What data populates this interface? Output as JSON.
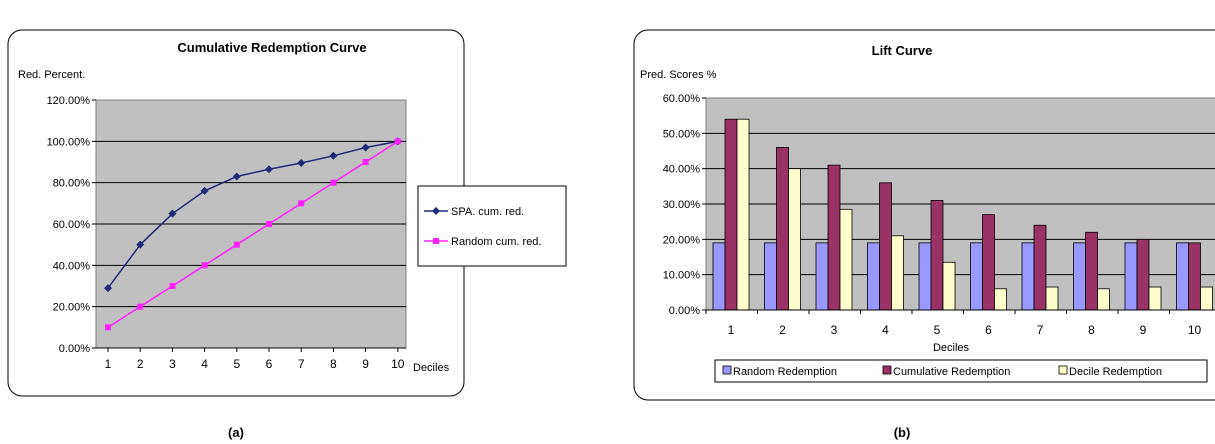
{
  "captions": {
    "a": "(a)",
    "b": "(b)"
  },
  "chart_data": [
    {
      "type": "line",
      "title": "Cumulative Redemption Curve",
      "ylabel": "Red. Percent.",
      "xlabel": "Deciles",
      "x": [
        1,
        2,
        3,
        4,
        5,
        6,
        7,
        8,
        9,
        10
      ],
      "ylim": [
        0,
        120
      ],
      "yticks": [
        0,
        20,
        40,
        60,
        80,
        100,
        120
      ],
      "ytick_labels": [
        "0.00%",
        "20.00%",
        "40.00%",
        "60.00%",
        "80.00%",
        "100.00%",
        "120.00%"
      ],
      "grid": true,
      "legend": "right",
      "series": [
        {
          "name": "SPA. cum. red.",
          "color": "#1f2a78",
          "marker": "diamond",
          "values": [
            29,
            50,
            65,
            76,
            83,
            86.5,
            89.5,
            93,
            97,
            100
          ]
        },
        {
          "name": "Random cum. red.",
          "color": "#ff22ff",
          "marker": "square",
          "values": [
            10,
            20,
            30,
            40,
            50,
            60,
            70,
            80,
            90,
            100
          ]
        }
      ]
    },
    {
      "type": "bar",
      "title": "Lift Curve",
      "ylabel": "Pred. Scores %",
      "xlabel": "Deciles",
      "categories": [
        "1",
        "2",
        "3",
        "4",
        "5",
        "6",
        "7",
        "8",
        "9",
        "10"
      ],
      "ylim": [
        0,
        60
      ],
      "yticks": [
        0,
        10,
        20,
        30,
        40,
        50,
        60
      ],
      "ytick_labels": [
        "0.00%",
        "10.00%",
        "20.00%",
        "30.00%",
        "40.00%",
        "50.00%",
        "60.00%"
      ],
      "grid": true,
      "legend": "bottom",
      "series": [
        {
          "name": "Random Redemption",
          "color": "#9999ff",
          "values": [
            19,
            19,
            19,
            19,
            19,
            19,
            19,
            19,
            19,
            19
          ]
        },
        {
          "name": "Cumulative Redemption",
          "color": "#993366",
          "values": [
            54,
            46,
            41,
            36,
            31,
            27,
            24,
            22,
            20,
            19
          ]
        },
        {
          "name": "Decile Redemption",
          "color": "#ffffcc",
          "values": [
            54,
            40,
            28.5,
            21,
            13.5,
            6,
            6.5,
            6,
            6.5,
            6.5
          ]
        }
      ]
    }
  ]
}
